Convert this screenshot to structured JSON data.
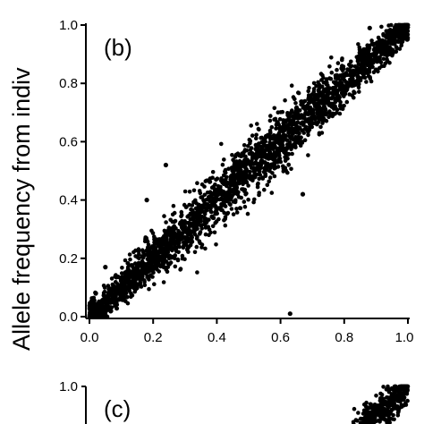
{
  "chart_data": [
    {
      "panel": "(b)",
      "type": "scatter",
      "ylabel": "Allele frequency from indiv",
      "xlim": [
        0.0,
        1.0
      ],
      "ylim": [
        0.0,
        1.0
      ],
      "x_ticks": [
        "0.0",
        "0.2",
        "0.4",
        "0.6",
        "0.8",
        "1.0"
      ],
      "y_ticks": [
        "0.0",
        "0.2",
        "0.4",
        "0.6",
        "0.8",
        "1.0"
      ],
      "grid": false,
      "legend": "none",
      "point_color": "#000000",
      "trend": {
        "description": "dense cloud along the diagonal y ≈ x",
        "x_range": [
          0.0,
          1.0
        ],
        "spread": 0.035
      },
      "outliers": [
        {
          "x": 0.24,
          "y": 0.52
        },
        {
          "x": 0.67,
          "y": 0.42
        },
        {
          "x": 0.63,
          "y": 0.01
        },
        {
          "x": 0.05,
          "y": 0.17
        },
        {
          "x": 0.18,
          "y": 0.4
        },
        {
          "x": 0.02,
          "y": 0.08
        },
        {
          "x": 0.88,
          "y": 0.99
        }
      ]
    },
    {
      "panel": "(c)",
      "type": "scatter",
      "ylim_top": "1.0",
      "y_ticks": [
        "1.0"
      ],
      "point_color": "#000000",
      "trend": {
        "description": "dense cloud near the upper-right corner along the diagonal",
        "visible_x_range": [
          0.82,
          1.0
        ]
      }
    }
  ]
}
